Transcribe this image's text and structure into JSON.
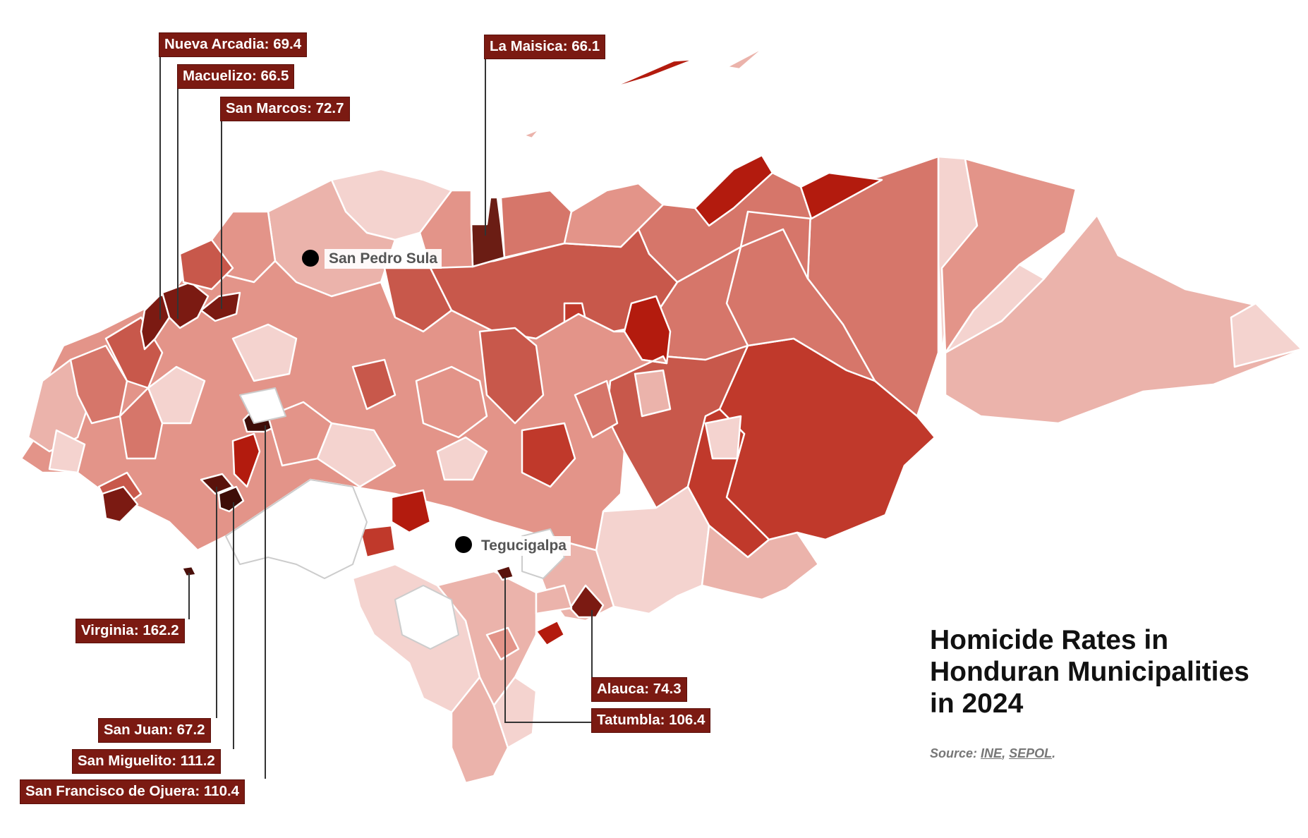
{
  "title": "Homicide Rates in Honduran Municipalities in 2024",
  "source": {
    "prefix": "Source:",
    "links": [
      "INE",
      "SEPOL"
    ],
    "separator": ",",
    "suffix": "."
  },
  "cities": [
    {
      "id": "san-pedro-sula",
      "name": "San Pedro Sula"
    },
    {
      "id": "tegucigalpa",
      "name": "Tegucigalpa"
    }
  ],
  "callouts": [
    {
      "id": "nueva-arcadia",
      "text": "Nueva Arcadia: 69.4",
      "municipality": "Nueva Arcadia",
      "rate": 69.4
    },
    {
      "id": "macuelizo",
      "text": "Macuelizo: 66.5",
      "municipality": "Macuelizo",
      "rate": 66.5
    },
    {
      "id": "san-marcos",
      "text": "San Marcos: 72.7",
      "municipality": "San Marcos",
      "rate": 72.7
    },
    {
      "id": "la-maisica",
      "text": "La Maisica: 66.1",
      "municipality": "La Maisica",
      "rate": 66.1
    },
    {
      "id": "virginia",
      "text": "Virginia: 162.2",
      "municipality": "Virginia",
      "rate": 162.2
    },
    {
      "id": "san-juan",
      "text": "San Juan: 67.2",
      "municipality": "San Juan",
      "rate": 67.2
    },
    {
      "id": "san-miguelito",
      "text": "San Miguelito: 111.2",
      "municipality": "San Miguelito",
      "rate": 111.2
    },
    {
      "id": "san-francisco-de-ojuera",
      "text": "San Francisco de Ojuera: 110.4",
      "municipality": "San Francisco de Ojuera",
      "rate": 110.4
    },
    {
      "id": "alauca",
      "text": "Alauca: 74.3",
      "municipality": "Alauca",
      "rate": 74.3
    },
    {
      "id": "tatumbla",
      "text": "Tatumbla: 106.4",
      "municipality": "Tatumbla",
      "rate": 106.4
    }
  ],
  "colors": {
    "scale": [
      "#ffffff",
      "#f4d3cf",
      "#ebb3ab",
      "#e39489",
      "#d6766a",
      "#c8584b",
      "#c0392b",
      "#b31b0e",
      "#7b1a12",
      "#4a0f0a"
    ],
    "no_data": "#ffffff",
    "border": "#ffffff",
    "no_data_border": "#cccccc",
    "label_bg": "#7b1a12",
    "label_text": "#ffffff"
  }
}
